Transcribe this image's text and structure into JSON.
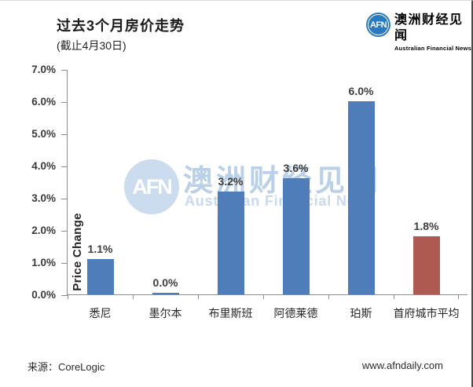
{
  "header": {
    "title": "过去3个月房价走势",
    "subtitle": "(截止4月30日)",
    "logo": {
      "abbr": "AFN",
      "name_zh": "澳洲财经见闻",
      "name_en": "Australian Financial News",
      "brand_color": "#2a7abf"
    }
  },
  "watermark": {
    "abbr": "AFN",
    "name_zh": "澳洲财经见闻",
    "name_en": "Australian Financial News"
  },
  "chart_data": {
    "type": "bar",
    "title": "过去3个月房价走势 (截止4月30日)",
    "categories": [
      "悉尼",
      "墨尔本",
      "布里斯班",
      "阿德莱德",
      "珀斯",
      "首府城市平均"
    ],
    "values": [
      1.1,
      0.0,
      3.2,
      3.6,
      6.0,
      1.8
    ],
    "value_labels": [
      "1.1%",
      "0.0%",
      "3.2%",
      "3.6%",
      "6.0%",
      "1.8%"
    ],
    "bar_colors": [
      "#4f7dba",
      "#4f7dba",
      "#4f7dba",
      "#4f7dba",
      "#4f7dba",
      "#ae5a52"
    ],
    "xlabel": "",
    "ylabel": "Price Change",
    "ylim": [
      0,
      7
    ],
    "ytick_step": 1,
    "ytick_labels": [
      "0.0%",
      "1.0%",
      "2.0%",
      "3.0%",
      "4.0%",
      "5.0%",
      "6.0%",
      "7.0%"
    ],
    "grid": false,
    "legend": false
  },
  "footer": {
    "source": "来源：CoreLogic",
    "website": "www.afndaily.com"
  }
}
